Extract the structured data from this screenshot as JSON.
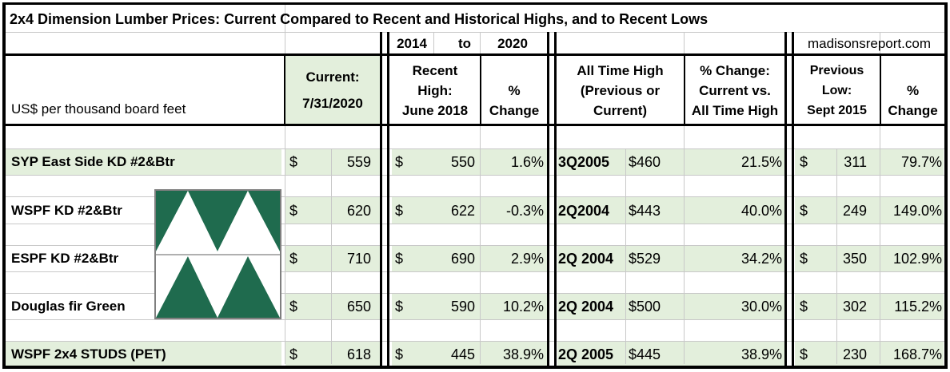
{
  "title": "2x4 Dimension Lumber Prices: Current Compared to Recent and Historical Highs, and to Recent Lows",
  "subheader": {
    "year_from": "2014",
    "to": "to",
    "year_to": "2020",
    "source": "madisonsreport.com"
  },
  "headers": {
    "units": "US$ per thousand board feet",
    "current": [
      "Current:",
      "7/31/2020"
    ],
    "recent_high": [
      "Recent",
      "High:",
      "June 2018"
    ],
    "pct_change_1": [
      "%",
      "Change"
    ],
    "all_time_high": [
      "All Time High",
      "(Previous or",
      "Current)"
    ],
    "pct_change_ath": [
      "% Change:",
      "Current vs.",
      "All Time High"
    ],
    "previous_low": [
      "Previous",
      "Low:",
      "Sept 2015"
    ],
    "pct_change_2": [
      "%",
      "Change"
    ]
  },
  "currency_symbol": "$",
  "rows": [
    {
      "product": "SYP East Side KD #2&Btr",
      "current": "559",
      "recent_high": "550",
      "pct_recent": "1.6%",
      "ath_date": "3Q2005",
      "ath_price": "$460",
      "pct_ath": "21.5%",
      "prev_low": "311",
      "pct_low": "79.7%"
    },
    {
      "product": "WSPF KD #2&Btr",
      "current": "620",
      "recent_high": "622",
      "pct_recent": "-0.3%",
      "ath_date": "2Q2004",
      "ath_price": "$443",
      "pct_ath": "40.0%",
      "prev_low": "249",
      "pct_low": "149.0%"
    },
    {
      "product": "ESPF KD #2&Btr",
      "current": "710",
      "recent_high": "690",
      "pct_recent": "2.9%",
      "ath_date": "2Q 2004",
      "ath_price": "$529",
      "pct_ath": "34.2%",
      "prev_low": "350",
      "pct_low": "102.9%"
    },
    {
      "product": "Douglas fir Green",
      "current": "650",
      "recent_high": "590",
      "pct_recent": "10.2%",
      "ath_date": "2Q 2004",
      "ath_price": "$500",
      "pct_ath": "30.0%",
      "prev_low": "302",
      "pct_low": "115.2%"
    },
    {
      "product": "WSPF 2x4 STUDS (PET)",
      "current": "618",
      "recent_high": "445",
      "pct_recent": "38.9%",
      "ath_date": "2Q 2005",
      "ath_price": "$445",
      "pct_ath": "38.9%",
      "prev_low": "230",
      "pct_low": "168.7%"
    }
  ],
  "colors": {
    "band_green": "#e3efdc",
    "logo_green": "#1f6b4e",
    "border": "#000000",
    "gridline": "#c8c8c8"
  },
  "logo": {
    "icon": "triangles-logo-icon"
  }
}
